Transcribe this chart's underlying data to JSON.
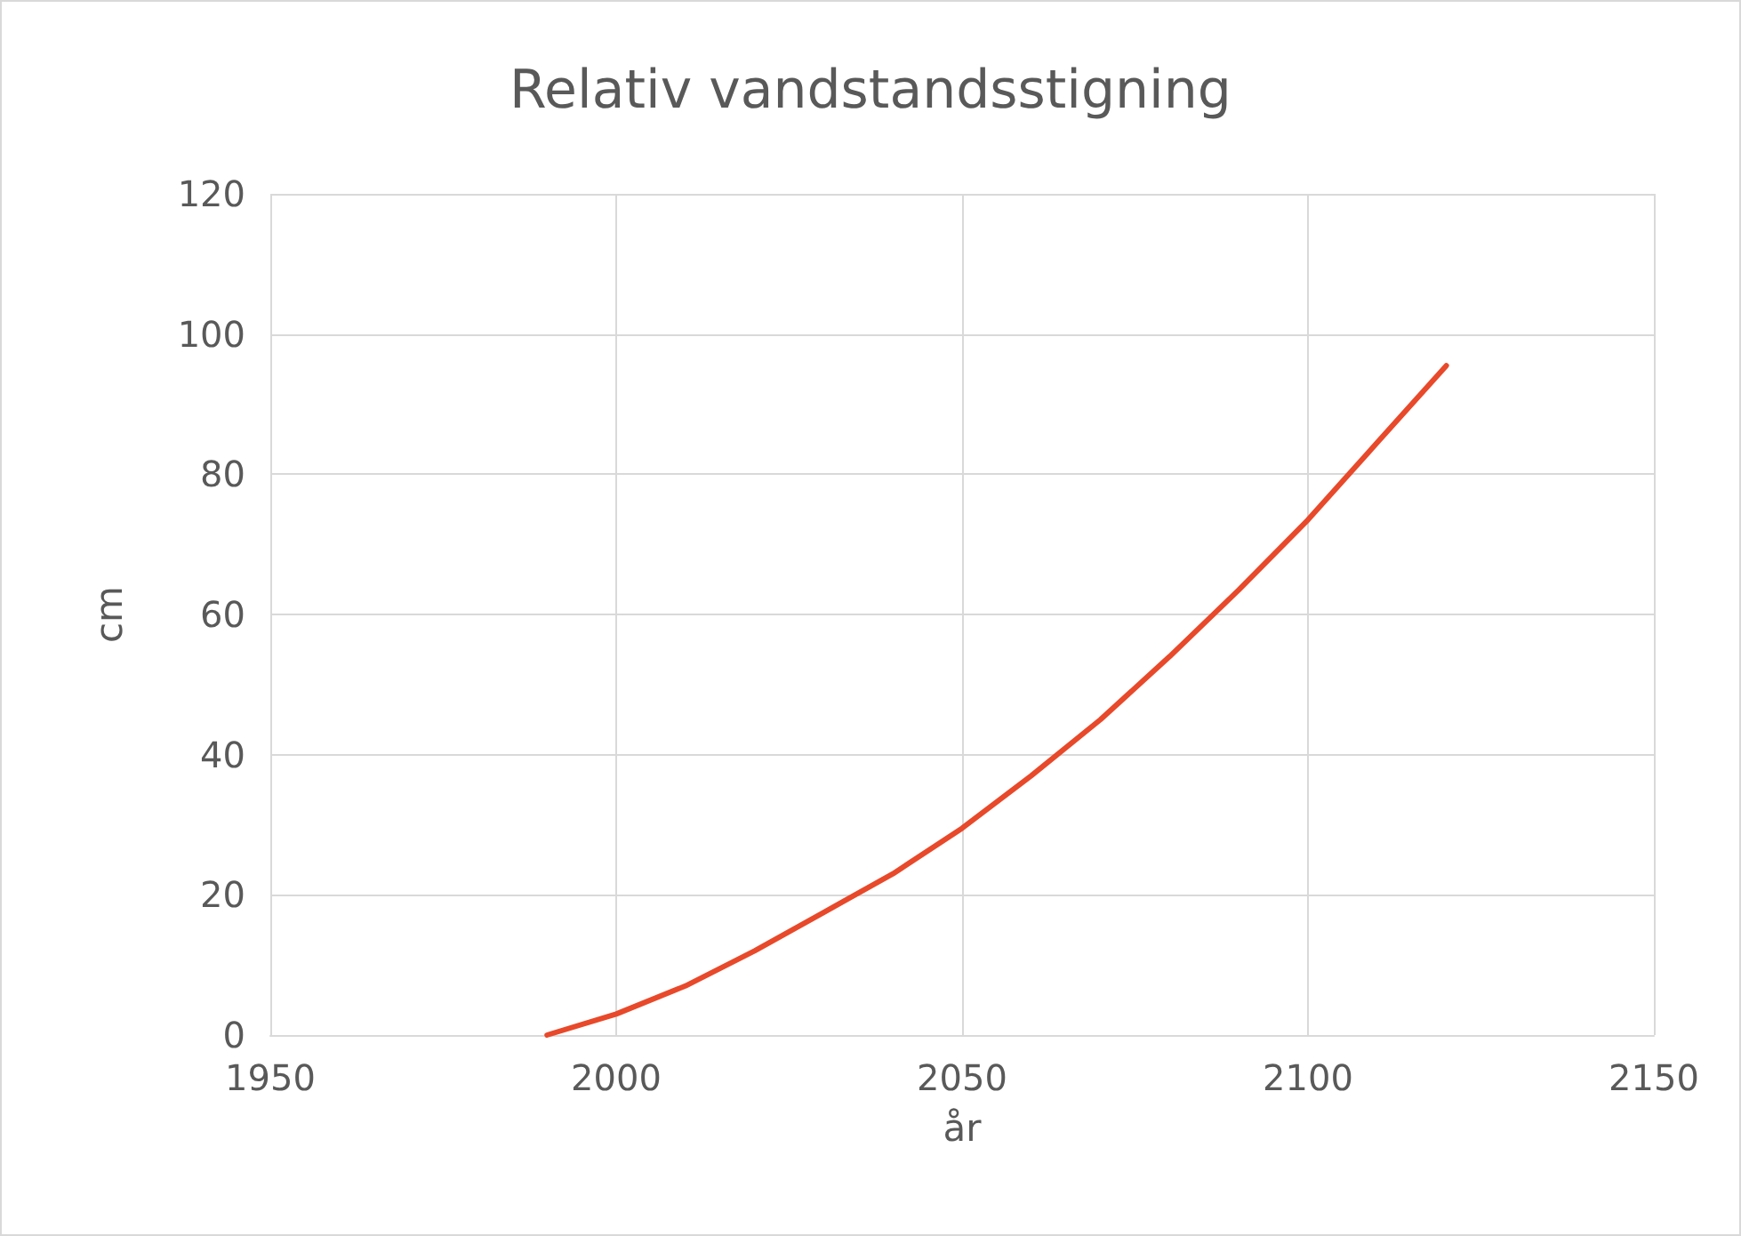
{
  "chart_data": {
    "type": "line",
    "title": "Relativ vandstandsstigning",
    "xlabel": "år",
    "ylabel": "cm",
    "x": [
      1990,
      2000,
      2010,
      2020,
      2030,
      2040,
      2050,
      2060,
      2070,
      2080,
      2090,
      2100,
      2110,
      2120
    ],
    "series": [
      {
        "color": "#e8492a",
        "values": [
          0,
          3,
          7,
          12,
          17.5,
          23,
          29.5,
          37,
          45,
          54,
          63.5,
          73.5,
          84.5,
          95.5
        ]
      }
    ],
    "xlim": [
      1950,
      2150
    ],
    "xticks": [
      1950,
      2000,
      2050,
      2100,
      2150
    ],
    "ylim": [
      0,
      120
    ],
    "yticks": [
      0,
      20,
      40,
      60,
      80,
      100,
      120
    ],
    "grid": true,
    "marker": "none",
    "line_style": "solid"
  }
}
